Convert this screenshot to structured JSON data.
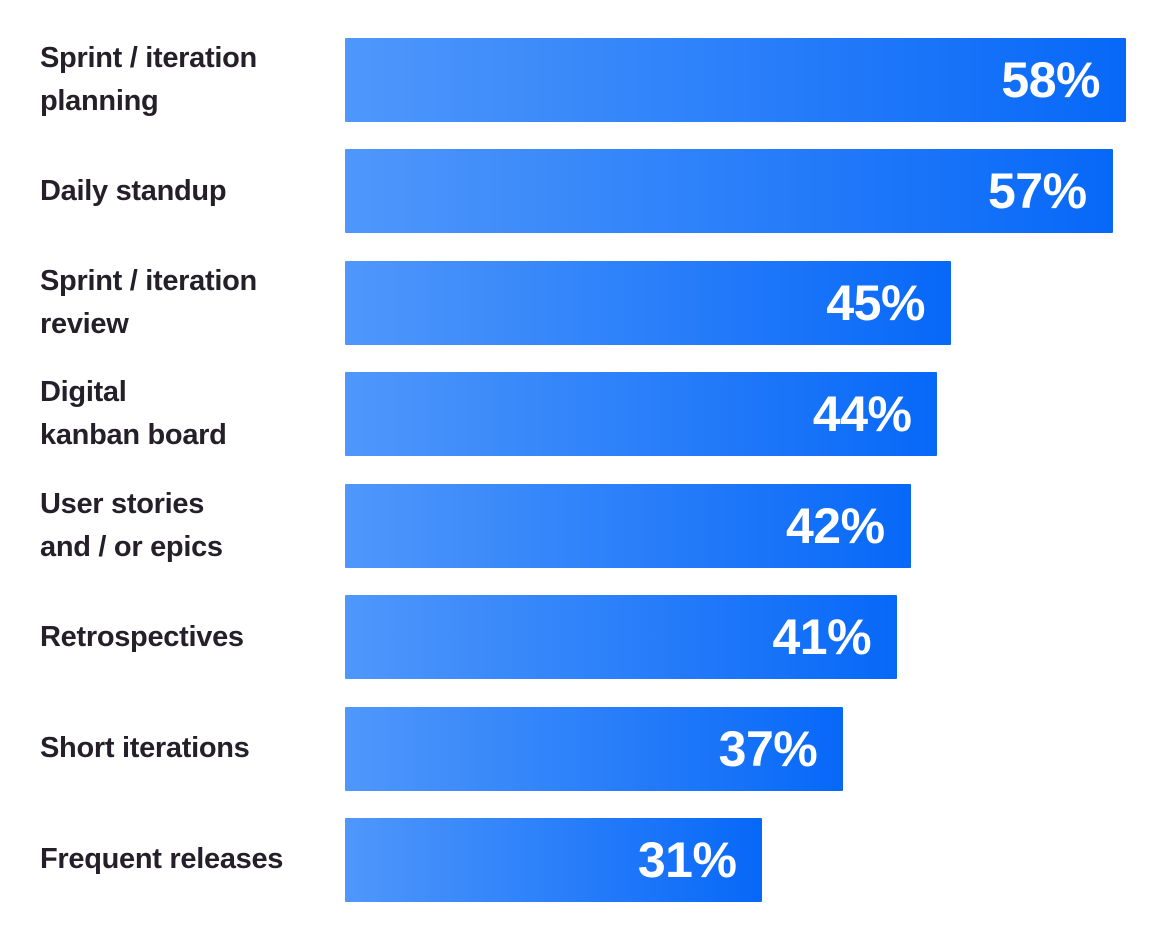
{
  "chart_data": {
    "type": "bar",
    "orientation": "horizontal",
    "title": "",
    "xlabel": "",
    "ylabel": "",
    "axis_ticks_visible": false,
    "grid": false,
    "legend": "none",
    "scale_max": 58,
    "categories": [
      "Sprint / iteration planning",
      "Daily standup",
      "Sprint / iteration review",
      "Digital kanban board",
      "User stories and / or epics",
      "Retrospectives",
      "Short iterations",
      "Frequent releases"
    ],
    "values": [
      58,
      57,
      45,
      44,
      42,
      41,
      37,
      31
    ],
    "rows": [
      {
        "label": "Sprint / iteration\nplanning",
        "value": 58,
        "value_label": "58%"
      },
      {
        "label": "Daily standup",
        "value": 57,
        "value_label": "57%"
      },
      {
        "label": "Sprint / iteration\nreview",
        "value": 45,
        "value_label": "45%"
      },
      {
        "label": "Digital\nkanban board",
        "value": 44,
        "value_label": "44%"
      },
      {
        "label": "User stories\nand / or epics",
        "value": 42,
        "value_label": "42%"
      },
      {
        "label": "Retrospectives",
        "value": 41,
        "value_label": "41%"
      },
      {
        "label": "Short iterations",
        "value": 37,
        "value_label": "37%"
      },
      {
        "label": "Frequent releases",
        "value": 31,
        "value_label": "31%"
      }
    ],
    "colors": {
      "background": "#ffffff",
      "bar_gradient_start": "#4f97fb",
      "bar_gradient_end": "#0768f8",
      "label_text": "#241f29",
      "value_text": "#ffffff"
    }
  }
}
